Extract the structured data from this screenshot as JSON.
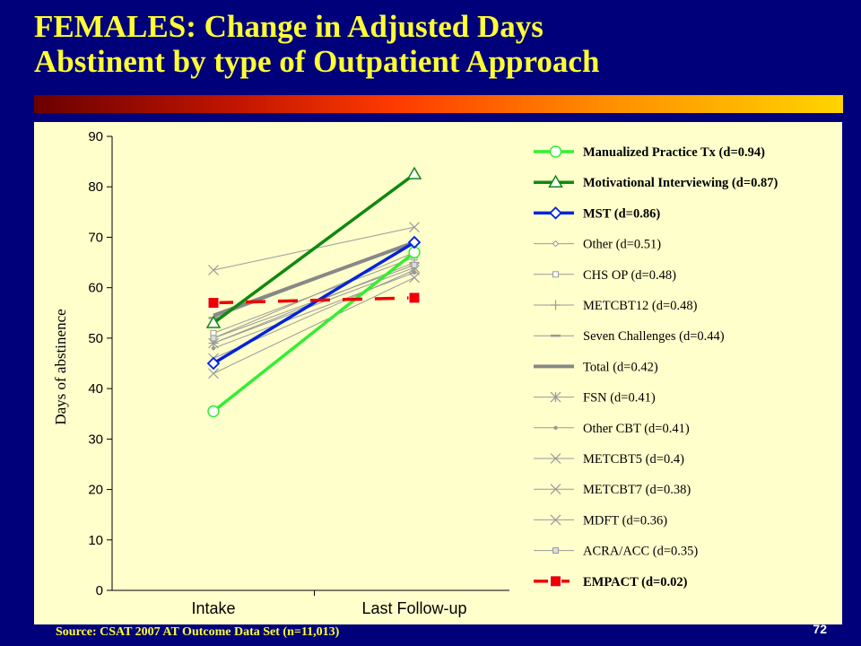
{
  "title_line1": "FEMALES: Change in Adjusted Days",
  "title_line2": "Abstinent by type of Outpatient Approach",
  "source": "Source:  CSAT 2007 AT Outcome Data Set (n=11,013)",
  "page_number": "72",
  "colors": {
    "background": "#00007a",
    "title": "#ffff33",
    "panel": "#ffffcc"
  },
  "chart_data": {
    "type": "line",
    "categories": [
      "Intake",
      "Last Follow-up"
    ],
    "ylabel": "Days of abstinence",
    "ylim": [
      0,
      90
    ],
    "yticks": [
      0,
      10,
      20,
      30,
      40,
      50,
      60,
      70,
      80,
      90
    ],
    "grid": false,
    "legend_position": "right",
    "series": [
      {
        "name": "Manualized Practice Tx (d=0.94)",
        "values": [
          35.5,
          67
        ],
        "color": "#33ee33",
        "marker": "circle",
        "emphasis": true
      },
      {
        "name": "Motivational Interviewing (d=0.87)",
        "values": [
          53,
          82.5
        ],
        "color": "#118811",
        "marker": "triangle",
        "emphasis": true
      },
      {
        "name": "MST (d=0.86)",
        "values": [
          45,
          69
        ],
        "color": "#0022dd",
        "marker": "diamond",
        "emphasis": true
      },
      {
        "name": "Other (d=0.51)",
        "values": [
          50,
          67
        ],
        "color": "#999999",
        "marker": "smalldiamond"
      },
      {
        "name": "CHS OP (d=0.48)",
        "values": [
          51,
          66
        ],
        "color": "#999999",
        "marker": "square"
      },
      {
        "name": "METCBT12 (d=0.48)",
        "values": [
          49,
          65
        ],
        "color": "#999999",
        "marker": "plus"
      },
      {
        "name": "Seven Challenges (d=0.44)",
        "values": [
          54,
          69
        ],
        "color": "#999999",
        "marker": "dash"
      },
      {
        "name": "Total (d=0.42)",
        "values": [
          54.5,
          69
        ],
        "color": "#888888",
        "marker": "none",
        "thick": true
      },
      {
        "name": "FSN (d=0.41)",
        "values": [
          49,
          64
        ],
        "color": "#999999",
        "marker": "star"
      },
      {
        "name": "Other CBT (d=0.41)",
        "values": [
          48,
          63
        ],
        "color": "#999999",
        "marker": "dot"
      },
      {
        "name": "METCBT5 (d=0.4)",
        "values": [
          63.5,
          72
        ],
        "color": "#999999",
        "marker": "x"
      },
      {
        "name": "METCBT7 (d=0.38)",
        "values": [
          43,
          62
        ],
        "color": "#999999",
        "marker": "x"
      },
      {
        "name": "MDFT (d=0.36)",
        "values": [
          46,
          63.5
        ],
        "color": "#999999",
        "marker": "x"
      },
      {
        "name": "ACRA/ACC (d=0.35)",
        "values": [
          50,
          64.5
        ],
        "color": "#999999",
        "marker": "smallsquare"
      },
      {
        "name": "EMPACT (d=0.02)",
        "values": [
          57,
          58
        ],
        "color": "#ee0000",
        "marker": "redsquare",
        "dashed": true,
        "emphasis": true
      }
    ]
  }
}
